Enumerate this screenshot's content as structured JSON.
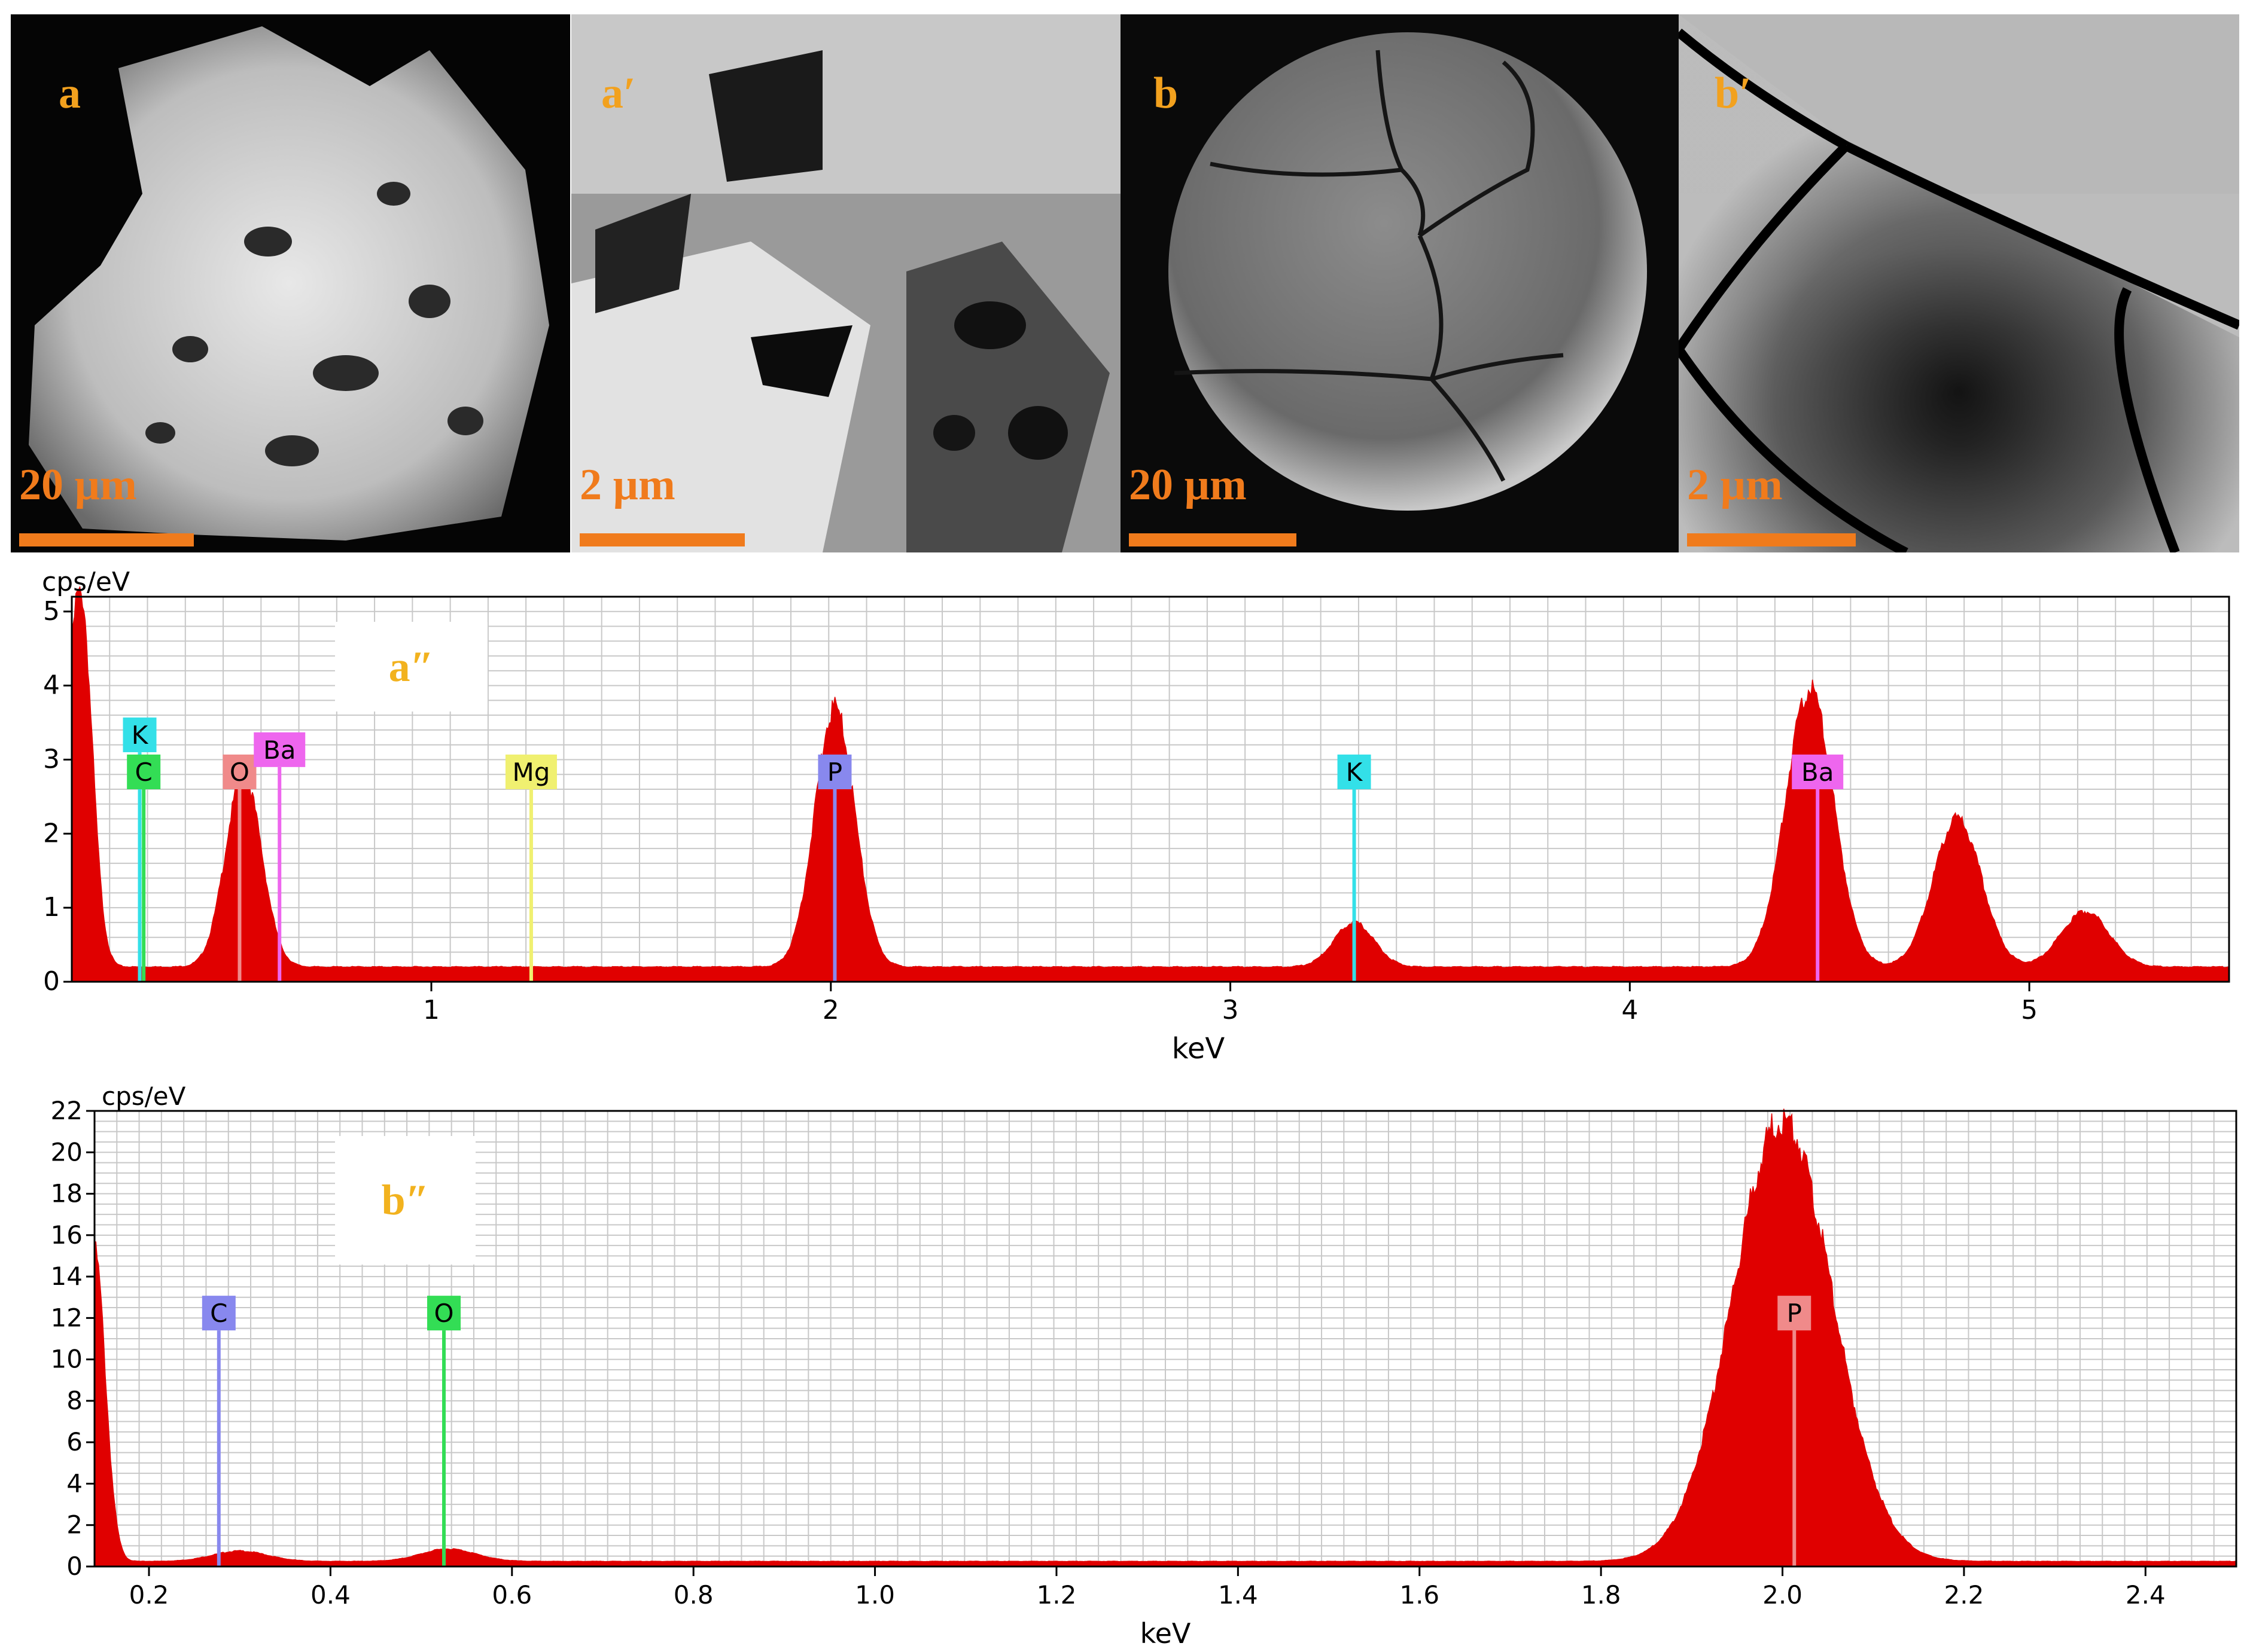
{
  "panels": [
    {
      "letter": "a",
      "scale": "20 µm"
    },
    {
      "letter": "a′",
      "scale": "2 µm"
    },
    {
      "letter": "b",
      "scale": "20 µm"
    },
    {
      "letter": "b′",
      "scale": "2 µm"
    }
  ],
  "colors": {
    "spectrum": "#e00000",
    "panel_letter": "#f2a11e",
    "scale_bar": "#f07b1c"
  },
  "chart_data": [
    {
      "type": "area",
      "label": "a″",
      "xlabel": "keV",
      "ylabel": "cps/eV",
      "xlim": [
        0.1,
        5.5
      ],
      "ylim": [
        0,
        5.2
      ],
      "xticks": [
        1,
        2,
        3,
        4,
        5
      ],
      "yticks": [
        0,
        1,
        2,
        3,
        4,
        5
      ],
      "grid": true,
      "baseline": 0.2,
      "peaks": [
        {
          "x": 0.12,
          "y": 5.2,
          "w": 0.03
        },
        {
          "x": 0.53,
          "y": 2.6,
          "w": 0.045
        },
        {
          "x": 2.01,
          "y": 3.5,
          "w": 0.05
        },
        {
          "x": 3.31,
          "y": 0.6,
          "w": 0.05
        },
        {
          "x": 4.45,
          "y": 3.75,
          "w": 0.06
        },
        {
          "x": 4.82,
          "y": 2.0,
          "w": 0.06
        },
        {
          "x": 5.14,
          "y": 0.75,
          "w": 0.06
        }
      ],
      "element_markers": [
        {
          "label": "K",
          "x": 0.27,
          "height": 3.1,
          "color": "#33e0e8"
        },
        {
          "label": "C",
          "x": 0.28,
          "height": 2.6,
          "color": "#33dd55"
        },
        {
          "label": "O",
          "x": 0.52,
          "height": 2.6,
          "color": "#f08a8a"
        },
        {
          "label": "Ba",
          "x": 0.62,
          "height": 2.9,
          "color": "#ee66ee"
        },
        {
          "label": "Mg",
          "x": 1.25,
          "height": 2.6,
          "color": "#f0f070"
        },
        {
          "label": "P",
          "x": 2.01,
          "height": 2.6,
          "color": "#8888ee"
        },
        {
          "label": "K",
          "x": 3.31,
          "height": 2.6,
          "color": "#33e0e8"
        },
        {
          "label": "Ba",
          "x": 4.47,
          "height": 2.6,
          "color": "#ee66ee"
        }
      ]
    },
    {
      "type": "area",
      "label": "b″",
      "xlabel": "keV",
      "ylabel": "cps/eV",
      "xlim": [
        0.14,
        2.5
      ],
      "ylim": [
        0,
        22
      ],
      "xticks": [
        0.2,
        0.4,
        0.6,
        0.8,
        1.0,
        1.2,
        1.4,
        1.6,
        1.8,
        2.0,
        2.2,
        2.4
      ],
      "yticks": [
        0,
        2,
        4,
        6,
        8,
        10,
        12,
        14,
        16,
        18,
        20,
        22
      ],
      "grid": true,
      "baseline": 0.25,
      "peaks": [
        {
          "x": 0.14,
          "y": 15,
          "w": 0.012
        },
        {
          "x": 0.3,
          "y": 0.5,
          "w": 0.03
        },
        {
          "x": 0.53,
          "y": 0.6,
          "w": 0.03
        },
        {
          "x": 2.0,
          "y": 21.3,
          "w": 0.055
        }
      ],
      "element_markers": [
        {
          "label": "C",
          "x": 0.277,
          "height": 11.4,
          "color": "#8888ee"
        },
        {
          "label": "O",
          "x": 0.525,
          "height": 11.4,
          "color": "#33dd55"
        },
        {
          "label": "P",
          "x": 2.013,
          "height": 11.4,
          "color": "#f08a8a"
        }
      ]
    }
  ]
}
